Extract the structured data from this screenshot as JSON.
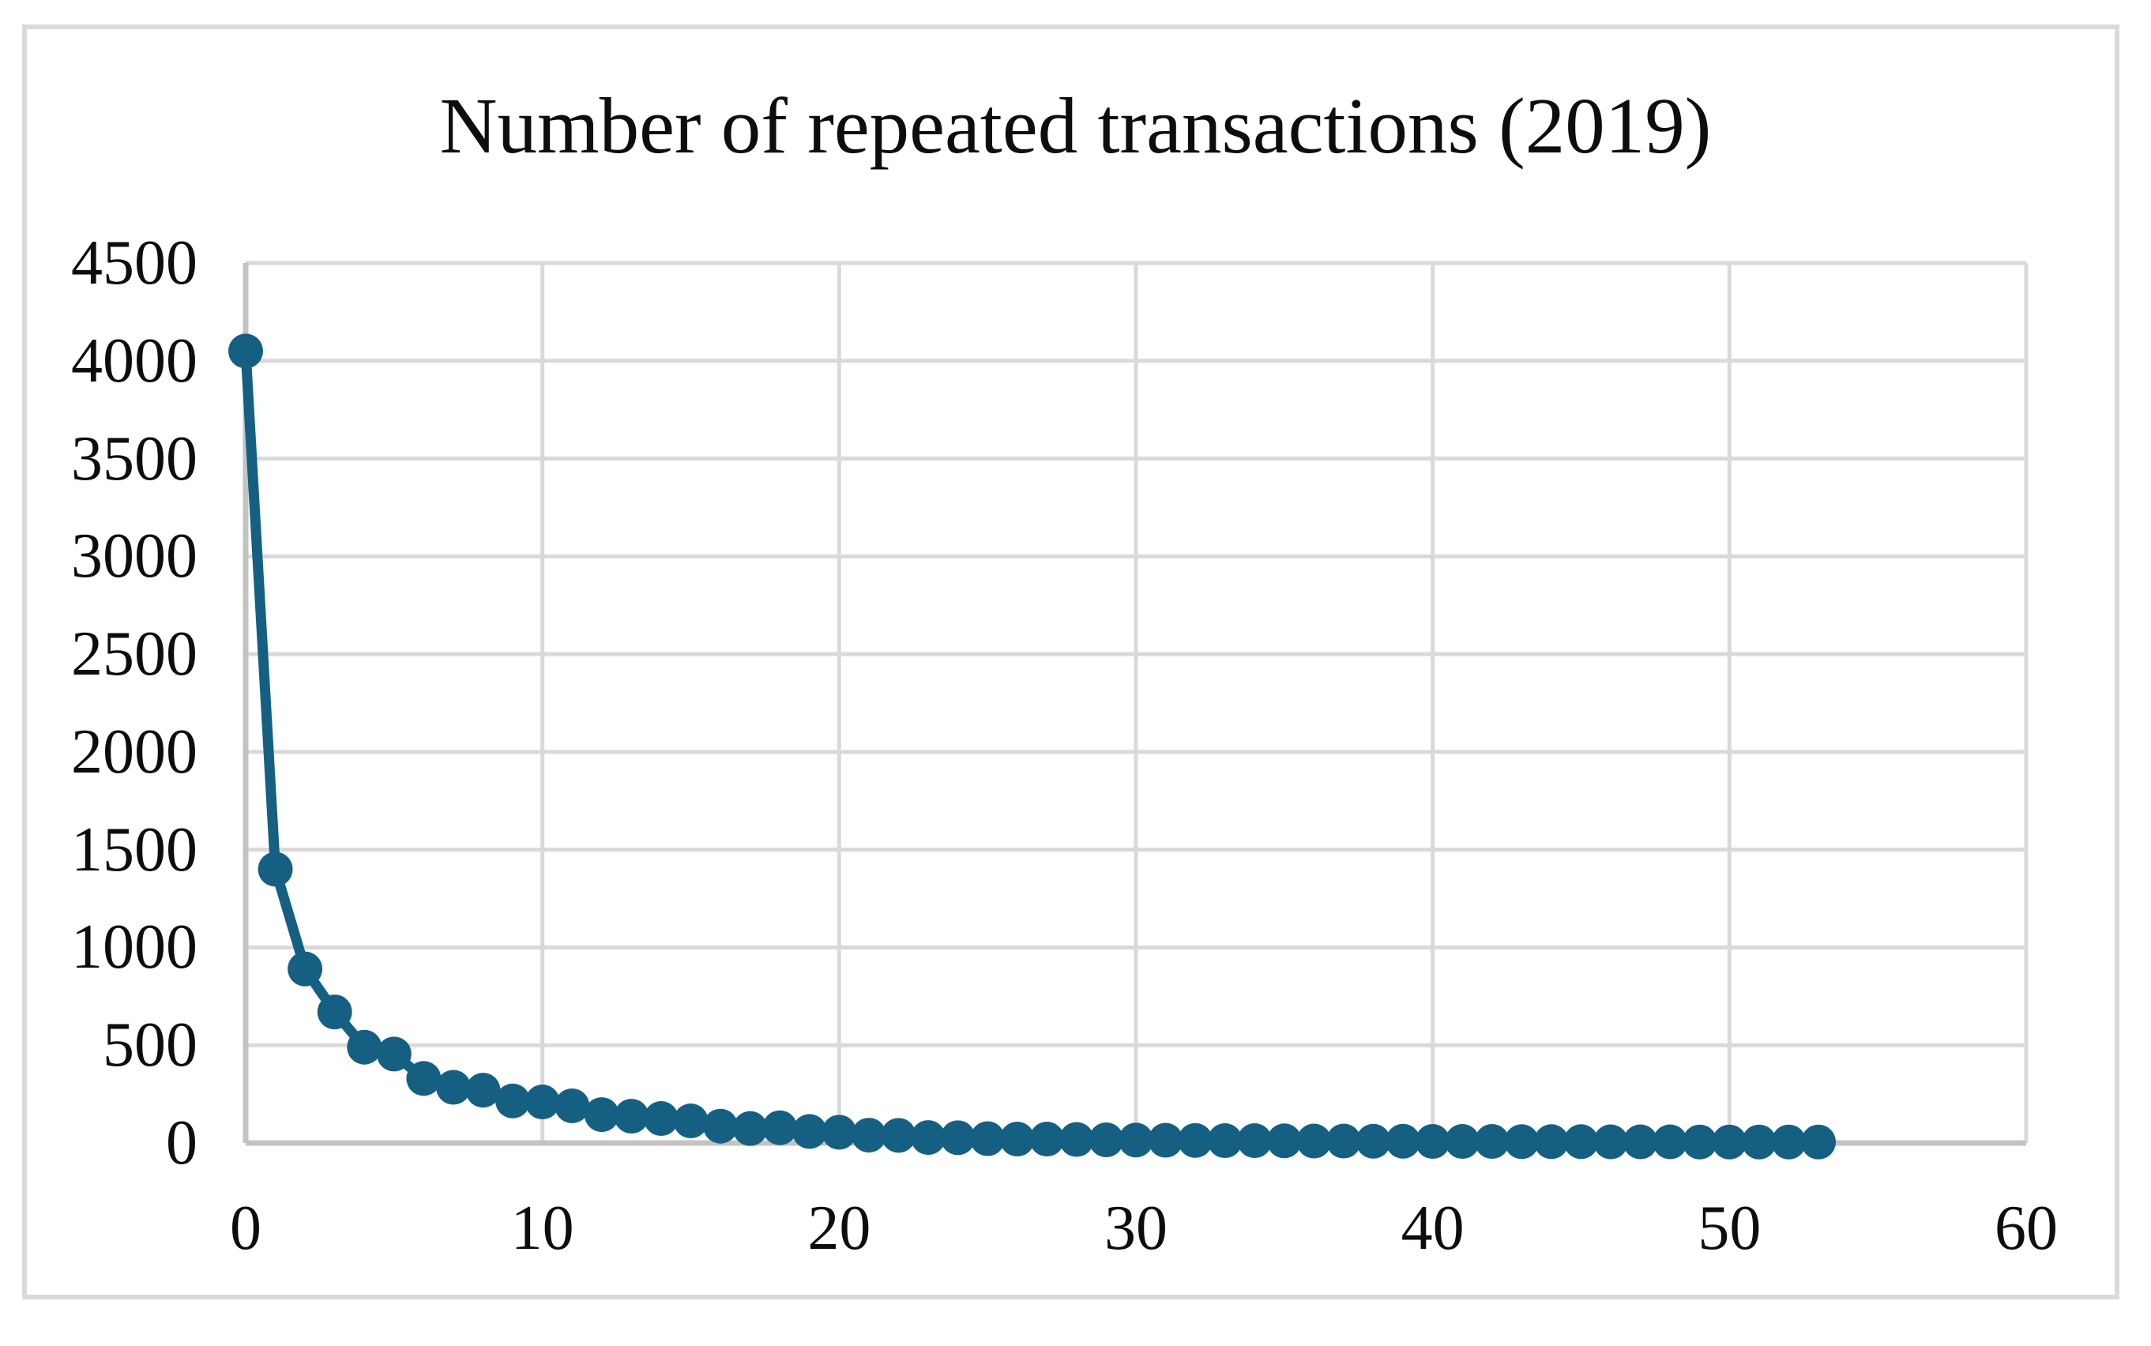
{
  "title": "Number of repeated transactions (2019)",
  "chart_data": {
    "type": "line",
    "title": "Number of repeated transactions (2019)",
    "xlabel": "",
    "ylabel": "",
    "xlim": [
      0,
      60
    ],
    "ylim": [
      0,
      4500
    ],
    "xticks": [
      0,
      10,
      20,
      30,
      40,
      50,
      60
    ],
    "yticks": [
      0,
      500,
      1000,
      1500,
      2000,
      2500,
      3000,
      3500,
      4000,
      4500
    ],
    "grid": true,
    "legend": false,
    "marker": "circle",
    "line_color": "#156082",
    "gridline_color": "#d9d9d9",
    "axis_color": "#c3c3c3",
    "x": [
      0,
      1,
      2,
      3,
      4,
      5,
      6,
      7,
      8,
      9,
      10,
      11,
      12,
      13,
      14,
      15,
      16,
      17,
      18,
      19,
      20,
      21,
      22,
      23,
      24,
      25,
      26,
      27,
      28,
      29,
      30,
      31,
      32,
      33,
      34,
      35,
      36,
      37,
      38,
      39,
      40,
      41,
      42,
      43,
      44,
      45,
      46,
      47,
      48,
      49,
      50,
      51,
      52,
      53
    ],
    "y": [
      4050,
      1400,
      890,
      670,
      490,
      455,
      330,
      285,
      270,
      215,
      210,
      190,
      145,
      137,
      125,
      113,
      86,
      74,
      78,
      59,
      55,
      40,
      39,
      28,
      27,
      22,
      20,
      20,
      18,
      16,
      15,
      14,
      13,
      12,
      12,
      11,
      10,
      10,
      9,
      9,
      8,
      8,
      8,
      7,
      7,
      7,
      6,
      6,
      6,
      5,
      5,
      5,
      5,
      5
    ]
  }
}
